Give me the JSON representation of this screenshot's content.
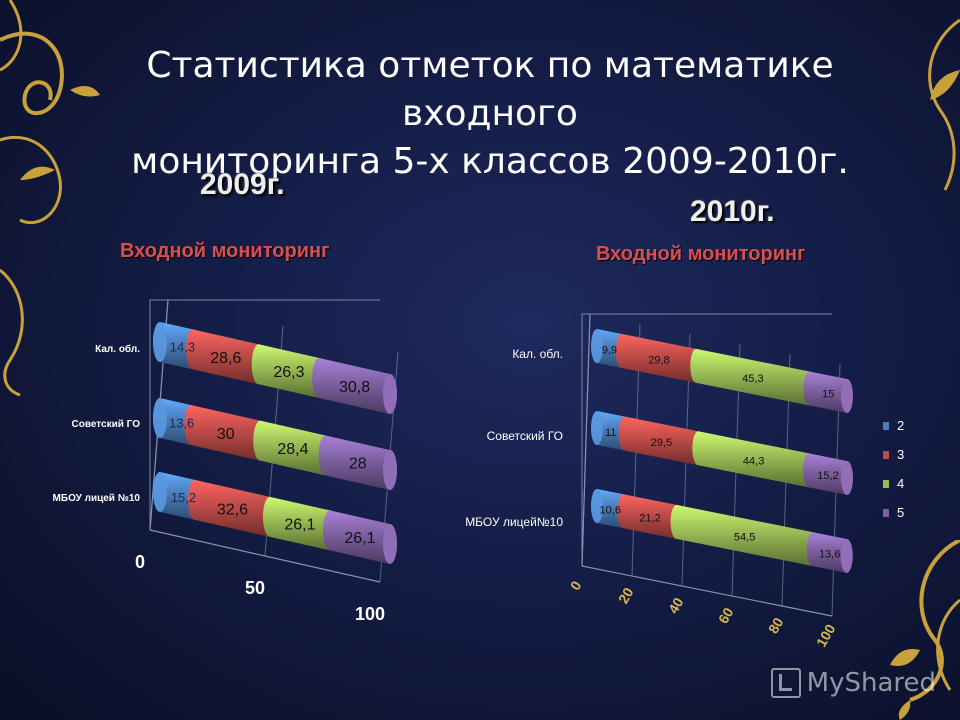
{
  "title_line1": "Статистика отметок по математике входного",
  "title_line2": "мониторинга 5-х классов 2009-2010г.",
  "watermark": "MyShared",
  "colors": {
    "grade2": "#4a7ebb",
    "grade3": "#be4b48",
    "grade4": "#98b954",
    "grade5": "#7d60a0",
    "gold": "#c9a13a"
  },
  "chart_data": [
    {
      "type": "bar",
      "orientation": "horizontal-stacked-3d",
      "title": "2009г.",
      "subtitle": "Входной мониторинг",
      "categories": [
        "Кал. обл.",
        "Советский ГО",
        "МБОУ лицей №10"
      ],
      "series": [
        {
          "values": [
            "14,3",
            "13,6",
            "15,2"
          ],
          "color": "#4a7ebb"
        },
        {
          "values": [
            "28,6",
            "30",
            "32,6"
          ],
          "color": "#be4b48"
        },
        {
          "values": [
            "26,3",
            "28,4",
            "26,1"
          ],
          "color": "#98b954"
        },
        {
          "values": [
            "30,8",
            "28",
            "26,1"
          ],
          "color": "#7d60a0"
        }
      ],
      "xlim": [
        0,
        100
      ],
      "xticks": [
        "0",
        "50",
        "100"
      ],
      "legend": "none"
    },
    {
      "type": "bar",
      "orientation": "horizontal-stacked-3d",
      "title": "2010г.",
      "subtitle": "Входной мониторинг",
      "categories": [
        "Кал. обл.",
        "Советский ГО",
        "МБОУ лицей№10"
      ],
      "series": [
        {
          "name": "2",
          "values": [
            "9,9",
            "11",
            "10,6"
          ],
          "color": "#4a7ebb"
        },
        {
          "name": "3",
          "values": [
            "29,8",
            "29,5",
            "21,2"
          ],
          "color": "#be4b48"
        },
        {
          "name": "4",
          "values": [
            "45,3",
            "44,3",
            "54,5"
          ],
          "color": "#98b954"
        },
        {
          "name": "5",
          "values": [
            "15",
            "15,2",
            "13,6"
          ],
          "color": "#7d60a0"
        }
      ],
      "xlim": [
        0,
        100
      ],
      "xticks": [
        "0",
        "20",
        "40",
        "60",
        "80",
        "100"
      ],
      "legend": "right"
    }
  ]
}
